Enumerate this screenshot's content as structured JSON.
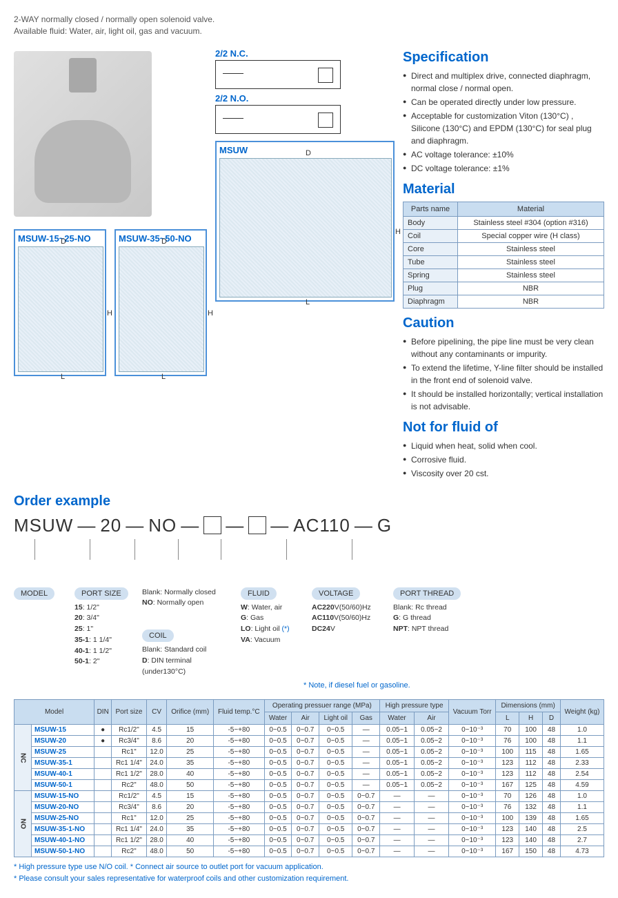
{
  "intro": {
    "line1": "2-WAY normally closed / normally open solenoid valve.",
    "line2": "Available fluid: Water, air, light oil, gas and vacuum."
  },
  "symbols": {
    "nc": "2/2 N.C.",
    "no": "2/2 N.O."
  },
  "diagrams": {
    "main": "MSUW",
    "d1": "MSUW-15~25-NO",
    "d2": "MSUW-35~50-NO"
  },
  "spec": {
    "title": "Specification",
    "items": [
      "Direct and multiplex drive, connected diaphragm, normal close / normal open.",
      "Can be operated directly under low pressure.",
      "Acceptable for customization Viton (130°C) , Silicone (130°C) and EPDM (130°C) for seal plug and diaphragm.",
      "AC voltage tolerance: ±10%",
      "DC voltage tolerance: ±1%"
    ]
  },
  "material": {
    "title": "Material",
    "header": {
      "parts": "Parts name",
      "mat": "Material"
    },
    "rows": [
      [
        "Body",
        "Stainless steel #304 (option #316)"
      ],
      [
        "Coil",
        "Special copper wire (H class)"
      ],
      [
        "Core",
        "Stainless steel"
      ],
      [
        "Tube",
        "Stainless steel"
      ],
      [
        "Spring",
        "Stainless steel"
      ],
      [
        "Plug",
        "NBR"
      ],
      [
        "Diaphragm",
        "NBR"
      ]
    ]
  },
  "caution": {
    "title": "Caution",
    "items": [
      "Before pipelining, the pipe line must be very clean without any contaminants or impurity.",
      "To extend the lifetime, Y-line filter should be installed in the front end of solenoid valve.",
      "It should be installed horizontally; vertical installation is not advisable."
    ]
  },
  "notfor": {
    "title": "Not for fluid of",
    "items": [
      "Liquid when heat, solid when cool.",
      "Corrosive fluid.",
      "Viscosity over 20 cst."
    ]
  },
  "order": {
    "title": "Order example",
    "code": {
      "p1": "MSUW",
      "p2": "20",
      "p3": "NO",
      "p4": "AC110",
      "p5": "G"
    },
    "legend": {
      "model": {
        "label": "MODEL"
      },
      "port": {
        "label": "PORT SIZE",
        "lines": [
          "<b>15</b>: 1/2\"",
          "<b>20</b>: 3/4\"",
          "<b>25</b>: 1\"",
          "<b>35-1</b>: 1 1/4\"",
          "<b>40-1</b>: 1 1/2\"",
          "<b>50-1</b>: 2\""
        ]
      },
      "ncno": {
        "lines": [
          "Blank: Normally closed",
          "<b>NO</b>: Normally open"
        ]
      },
      "coil": {
        "label": "COIL",
        "lines": [
          "Blank: Standard coil",
          "<b>D</b>: DIN terminal (under130°C)"
        ]
      },
      "fluid": {
        "label": "FLUID",
        "lines": [
          "<b>W</b>: Water, air",
          "<b>G</b>: Gas",
          "<b>LO</b>: Light oil <span class='note-blue'>(*)</span>",
          "<b>VA</b>: Vacuum"
        ]
      },
      "volt": {
        "label": "VOLTAGE",
        "lines": [
          "<b>AC220</b>V(50/60)Hz",
          "<b>AC110</b>V(50/60)Hz",
          "<b>DC24</b>V"
        ]
      },
      "thread": {
        "label": "PORT THREAD",
        "lines": [
          "Blank: Rc thread",
          "<b>G</b>: G thread",
          "<b>NPT</b>: NPT thread"
        ]
      }
    },
    "note": "* Note, if diesel fuel or gasoline."
  },
  "specTable": {
    "headers": {
      "model": "Model",
      "din": "DIN",
      "port": "Port size",
      "cv": "CV",
      "orifice": "Orifice (mm)",
      "temp": "Fluid temp.°C",
      "op": "Operating pressuer range (MPa)",
      "water": "Water",
      "air": "Air",
      "oil": "Light oil",
      "gas": "Gas",
      "hp": "High pressure type",
      "hwater": "Water",
      "hair": "Air",
      "vac": "Vacuum Torr",
      "dim": "Dimensions (mm)",
      "dL": "L",
      "dH": "H",
      "dD": "D",
      "wt": "Weight (kg)"
    },
    "groupNC": "NC",
    "groupNO": "NO",
    "nc": [
      [
        "MSUW-15",
        "●",
        "Rc1/2\"",
        "4.5",
        "15",
        "-5~+80",
        "0~0.5",
        "0~0.7",
        "0~0.5",
        "—",
        "0.05~1",
        "0.05~2",
        "0~10⁻³",
        "70",
        "100",
        "48",
        "1.0"
      ],
      [
        "MSUW-20",
        "●",
        "Rc3/4\"",
        "8.6",
        "20",
        "-5~+80",
        "0~0.5",
        "0~0.7",
        "0~0.5",
        "—",
        "0.05~1",
        "0.05~2",
        "0~10⁻³",
        "76",
        "100",
        "48",
        "1.1"
      ],
      [
        "MSUW-25",
        "",
        "Rc1\"",
        "12.0",
        "25",
        "-5~+80",
        "0~0.5",
        "0~0.7",
        "0~0.5",
        "—",
        "0.05~1",
        "0.05~2",
        "0~10⁻³",
        "100",
        "115",
        "48",
        "1.65"
      ],
      [
        "MSUW-35-1",
        "",
        "Rc1 1/4\"",
        "24.0",
        "35",
        "-5~+80",
        "0~0.5",
        "0~0.7",
        "0~0.5",
        "—",
        "0.05~1",
        "0.05~2",
        "0~10⁻³",
        "123",
        "112",
        "48",
        "2.33"
      ],
      [
        "MSUW-40-1",
        "",
        "Rc1 1/2\"",
        "28.0",
        "40",
        "-5~+80",
        "0~0.5",
        "0~0.7",
        "0~0.5",
        "—",
        "0.05~1",
        "0.05~2",
        "0~10⁻³",
        "123",
        "112",
        "48",
        "2.54"
      ],
      [
        "MSUW-50-1",
        "",
        "Rc2\"",
        "48.0",
        "50",
        "-5~+80",
        "0~0.5",
        "0~0.7",
        "0~0.5",
        "—",
        "0.05~1",
        "0.05~2",
        "0~10⁻³",
        "167",
        "125",
        "48",
        "4.59"
      ]
    ],
    "no": [
      [
        "MSUW-15-NO",
        "",
        "Rc1/2\"",
        "4.5",
        "15",
        "-5~+80",
        "0~0.5",
        "0~0.7",
        "0~0.5",
        "0~0.7",
        "—",
        "—",
        "0~10⁻³",
        "70",
        "126",
        "48",
        "1.0"
      ],
      [
        "MSUW-20-NO",
        "",
        "Rc3/4\"",
        "8.6",
        "20",
        "-5~+80",
        "0~0.5",
        "0~0.7",
        "0~0.5",
        "0~0.7",
        "—",
        "—",
        "0~10⁻³",
        "76",
        "132",
        "48",
        "1.1"
      ],
      [
        "MSUW-25-NO",
        "",
        "Rc1\"",
        "12.0",
        "25",
        "-5~+80",
        "0~0.5",
        "0~0.7",
        "0~0.5",
        "0~0.7",
        "—",
        "—",
        "0~10⁻³",
        "100",
        "139",
        "48",
        "1.65"
      ],
      [
        "MSUW-35-1-NO",
        "",
        "Rc1 1/4\"",
        "24.0",
        "35",
        "-5~+80",
        "0~0.5",
        "0~0.7",
        "0~0.5",
        "0~0.7",
        "—",
        "—",
        "0~10⁻³",
        "123",
        "140",
        "48",
        "2.5"
      ],
      [
        "MSUW-40-1-NO",
        "",
        "Rc1 1/2\"",
        "28.0",
        "40",
        "-5~+80",
        "0~0.5",
        "0~0.7",
        "0~0.5",
        "0~0.7",
        "—",
        "—",
        "0~10⁻³",
        "123",
        "140",
        "48",
        "2.7"
      ],
      [
        "MSUW-50-1-NO",
        "",
        "Rc2\"",
        "48.0",
        "50",
        "-5~+80",
        "0~0.5",
        "0~0.7",
        "0~0.5",
        "0~0.7",
        "—",
        "—",
        "0~10⁻³",
        "167",
        "150",
        "48",
        "4.73"
      ]
    ]
  },
  "footnotes": [
    "* High pressure type use N/O coil.   * Connect air source to outlet port for vacuum application.",
    "* Please consult your sales representative for waterproof coils and other customization requirement."
  ]
}
